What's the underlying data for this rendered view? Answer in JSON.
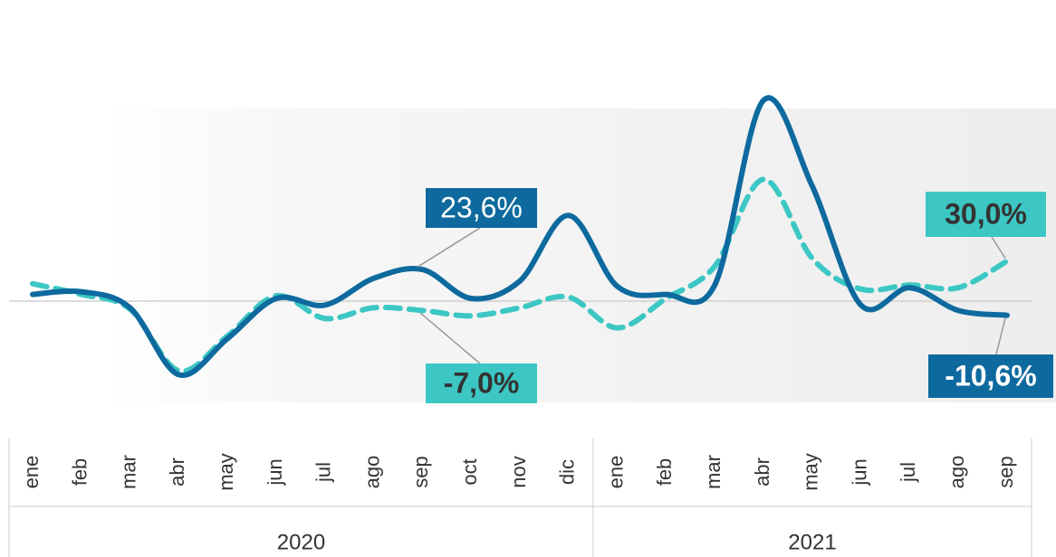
{
  "chart_data": {
    "type": "line",
    "groups": [
      {
        "label": "2020",
        "categories": [
          "ene",
          "feb",
          "mar",
          "abr",
          "may",
          "jun",
          "jul",
          "ago",
          "sep",
          "oct",
          "nov",
          "dic"
        ]
      },
      {
        "label": "2021",
        "categories": [
          "ene",
          "feb",
          "mar",
          "abr",
          "may",
          "jun",
          "jul",
          "ago",
          "sep"
        ]
      }
    ],
    "series": [
      {
        "color": "#0e6a9e",
        "dashed": false,
        "values": [
          5,
          7,
          -5,
          -55,
          -28,
          2,
          -3,
          17,
          23.6,
          2,
          15,
          64,
          11,
          5,
          12,
          150,
          86,
          -3,
          10,
          -7,
          -10.6
        ],
        "value_labels": [
          null,
          null,
          null,
          null,
          null,
          null,
          null,
          null,
          "23,6%",
          null,
          null,
          null,
          null,
          null,
          null,
          null,
          null,
          null,
          null,
          null,
          "-10,6%"
        ]
      },
      {
        "color": "#3cc7c4",
        "dashed": true,
        "values": [
          13,
          5,
          -6,
          -52,
          -26,
          4,
          -13,
          -5,
          -7.0,
          -11,
          -5,
          3,
          -20,
          2,
          26,
          91,
          32,
          9,
          12,
          10,
          30.0
        ],
        "value_labels": [
          null,
          null,
          null,
          null,
          null,
          null,
          null,
          null,
          "-7,0%",
          null,
          null,
          null,
          null,
          null,
          null,
          null,
          null,
          null,
          null,
          null,
          "30,0%"
        ]
      }
    ]
  }
}
